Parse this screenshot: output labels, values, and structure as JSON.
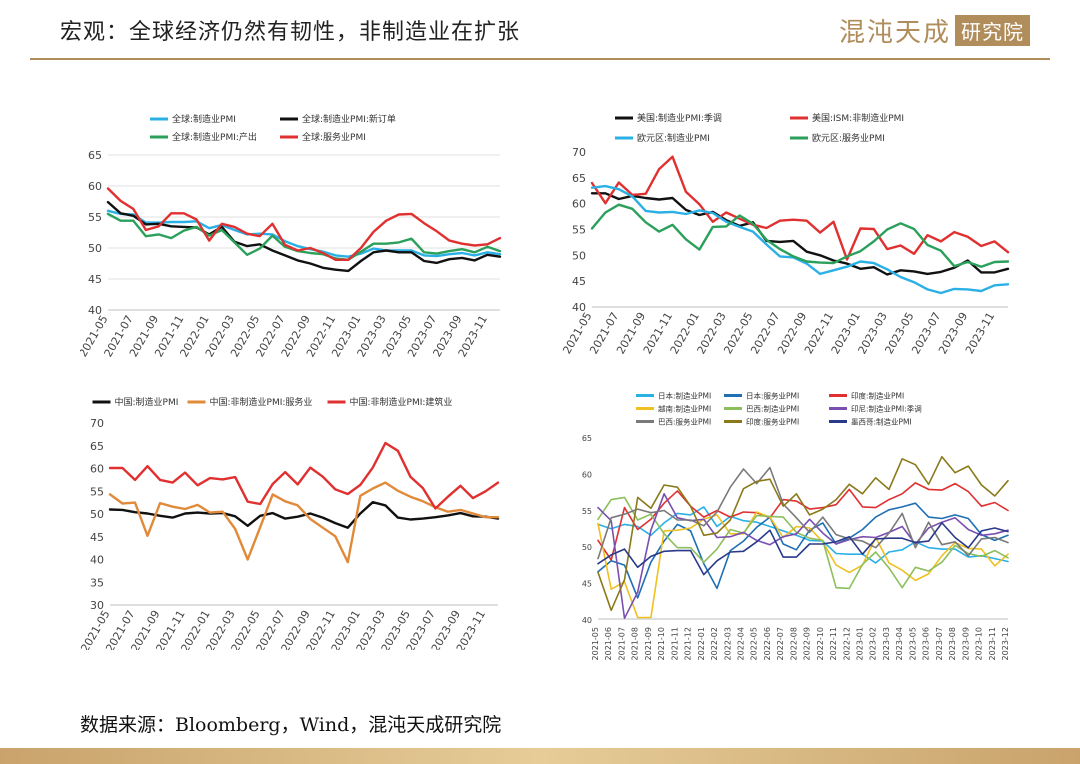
{
  "header": {
    "title": "宏观：全球经济仍然有韧性，非制造业在扩张",
    "brand_text": "混沌天成",
    "brand_box": "研究院"
  },
  "source": "数据来源：Bloomberg，Wind，混沌天成研究院",
  "colors": {
    "gold": "#b08d5a"
  },
  "chart_data": [
    {
      "type": "line",
      "ylim": [
        40,
        65
      ],
      "yticks": [
        40,
        45,
        50,
        55,
        60,
        65
      ],
      "x": [
        "2021-05",
        "2021-06",
        "2021-07",
        "2021-08",
        "2021-09",
        "2021-10",
        "2021-11",
        "2021-12",
        "2022-01",
        "2022-02",
        "2022-03",
        "2022-04",
        "2022-05",
        "2022-06",
        "2022-07",
        "2022-08",
        "2022-09",
        "2022-10",
        "2022-11",
        "2022-12",
        "2023-01",
        "2023-02",
        "2023-03",
        "2023-04",
        "2023-05",
        "2023-06",
        "2023-07",
        "2023-08",
        "2023-09",
        "2023-10",
        "2023-11",
        "2023-12"
      ],
      "xticks": [
        "2021-05",
        "2021-07",
        "2021-09",
        "2021-11",
        "2022-01",
        "2022-03",
        "2022-05",
        "2022-07",
        "2022-09",
        "2022-11",
        "2023-01",
        "2023-03",
        "2023-05",
        "2023-07",
        "2023-09",
        "2023-11"
      ],
      "legend": "top",
      "legend_cols": 2,
      "grid": true,
      "series": [
        {
          "name": "全球:制造业PMI",
          "color": "#2bb0e6",
          "values": [
            56.0,
            55.5,
            55.4,
            54.1,
            54.1,
            54.2,
            54.2,
            54.3,
            53.2,
            53.7,
            52.9,
            52.2,
            52.3,
            52.2,
            51.1,
            50.3,
            49.8,
            49.4,
            48.8,
            48.6,
            49.1,
            49.9,
            49.6,
            49.6,
            49.6,
            48.8,
            48.7,
            49.0,
            49.2,
            48.8,
            49.3,
            49.0
          ]
        },
        {
          "name": "全球:制造业PMI:新订单",
          "color": "#111111",
          "values": [
            57.4,
            55.6,
            55.2,
            53.8,
            53.9,
            53.5,
            53.4,
            53.3,
            52.2,
            53.4,
            51.0,
            50.3,
            50.6,
            49.6,
            48.8,
            48.0,
            47.5,
            46.8,
            46.5,
            46.3,
            47.9,
            49.3,
            49.6,
            49.3,
            49.3,
            47.9,
            47.6,
            48.2,
            48.4,
            48.0,
            48.9,
            48.6
          ]
        },
        {
          "name": "全球:制造业PMI:产出",
          "color": "#2aa05a",
          "values": [
            55.5,
            54.4,
            54.4,
            51.9,
            52.2,
            51.6,
            52.8,
            53.4,
            52.0,
            52.9,
            50.9,
            48.9,
            49.9,
            52.0,
            50.2,
            49.5,
            49.2,
            49.0,
            48.3,
            48.1,
            49.4,
            50.7,
            50.7,
            50.9,
            51.5,
            49.3,
            49.1,
            49.5,
            49.8,
            49.3,
            50.2,
            49.5
          ]
        },
        {
          "name": "全球:服务业PMI",
          "color": "#e03030",
          "values": [
            59.6,
            57.6,
            56.3,
            52.9,
            53.5,
            55.6,
            55.6,
            54.6,
            51.2,
            53.9,
            53.4,
            52.3,
            51.9,
            53.9,
            50.5,
            49.6,
            50.0,
            49.2,
            48.1,
            48.1,
            50.0,
            52.6,
            54.4,
            55.4,
            55.5,
            54.0,
            52.7,
            51.2,
            50.7,
            50.4,
            50.6,
            51.6
          ]
        }
      ]
    },
    {
      "type": "line",
      "ylim": [
        40,
        70
      ],
      "yticks": [
        40,
        45,
        50,
        55,
        60,
        65,
        70
      ],
      "x": [
        "2021-05",
        "2021-06",
        "2021-07",
        "2021-08",
        "2021-09",
        "2021-10",
        "2021-11",
        "2021-12",
        "2022-01",
        "2022-02",
        "2022-03",
        "2022-04",
        "2022-05",
        "2022-06",
        "2022-07",
        "2022-08",
        "2022-09",
        "2022-10",
        "2022-11",
        "2022-12",
        "2023-01",
        "2023-02",
        "2023-03",
        "2023-04",
        "2023-05",
        "2023-06",
        "2023-07",
        "2023-08",
        "2023-09",
        "2023-10",
        "2023-11",
        "2023-12"
      ],
      "xticks": [
        "2021-05",
        "2021-07",
        "2021-09",
        "2021-11",
        "2022-01",
        "2022-03",
        "2022-05",
        "2022-07",
        "2022-09",
        "2022-11",
        "2023-01",
        "2023-03",
        "2023-05",
        "2023-07",
        "2023-09",
        "2023-11"
      ],
      "legend": "top",
      "legend_cols": 2,
      "grid": false,
      "series": [
        {
          "name": "美国:制造业PMI:季调",
          "color": "#111111",
          "values": [
            62.0,
            62.0,
            60.9,
            61.5,
            61.1,
            60.8,
            61.1,
            58.8,
            57.8,
            58.4,
            56.8,
            55.7,
            56.4,
            52.8,
            52.6,
            52.8,
            50.7,
            50.0,
            49.0,
            48.4,
            47.4,
            47.7,
            46.3,
            47.1,
            46.9,
            46.4,
            46.8,
            47.6,
            49.0,
            46.7,
            46.7,
            47.4
          ]
        },
        {
          "name": "美国:ISM:非制造业PMI",
          "color": "#e03030",
          "values": [
            64.0,
            60.1,
            64.1,
            61.7,
            61.9,
            66.7,
            69.1,
            62.3,
            59.9,
            56.5,
            58.3,
            57.1,
            55.9,
            55.3,
            56.7,
            56.9,
            56.7,
            54.4,
            56.5,
            49.2,
            55.2,
            55.1,
            51.2,
            51.9,
            50.3,
            53.9,
            52.7,
            54.5,
            53.6,
            51.8,
            52.7,
            50.6
          ]
        },
        {
          "name": "欧元区:制造业PMI",
          "color": "#2bb0e6",
          "values": [
            63.1,
            63.4,
            62.8,
            61.4,
            58.6,
            58.3,
            58.4,
            58.0,
            58.7,
            58.2,
            56.5,
            55.5,
            54.6,
            52.1,
            49.8,
            49.6,
            48.4,
            46.4,
            47.1,
            47.8,
            48.8,
            48.5,
            47.3,
            45.8,
            44.8,
            43.4,
            42.7,
            43.5,
            43.4,
            43.1,
            44.2,
            44.4
          ]
        },
        {
          "name": "欧元区:服务业PMI",
          "color": "#2aa05a",
          "values": [
            55.2,
            58.3,
            59.8,
            59.0,
            56.4,
            54.6,
            55.9,
            53.1,
            51.1,
            55.5,
            55.6,
            57.7,
            56.1,
            53.0,
            51.2,
            49.8,
            48.8,
            48.6,
            48.5,
            49.8,
            50.8,
            52.7,
            55.0,
            56.2,
            55.1,
            52.0,
            50.9,
            47.9,
            48.7,
            47.8,
            48.7,
            48.8
          ]
        }
      ]
    },
    {
      "type": "line",
      "ylim": [
        30,
        70
      ],
      "yticks": [
        30,
        35,
        40,
        45,
        50,
        55,
        60,
        65,
        70
      ],
      "x": [
        "2021-05",
        "2021-06",
        "2021-07",
        "2021-08",
        "2021-09",
        "2021-10",
        "2021-11",
        "2021-12",
        "2022-01",
        "2022-02",
        "2022-03",
        "2022-04",
        "2022-05",
        "2022-06",
        "2022-07",
        "2022-08",
        "2022-09",
        "2022-10",
        "2022-11",
        "2022-12",
        "2023-01",
        "2023-02",
        "2023-03",
        "2023-04",
        "2023-05",
        "2023-06",
        "2023-07",
        "2023-08",
        "2023-09",
        "2023-10",
        "2023-11",
        "2023-12"
      ],
      "xticks": [
        "2021-05",
        "2021-07",
        "2021-09",
        "2021-11",
        "2022-01",
        "2022-03",
        "2022-05",
        "2022-07",
        "2022-09",
        "2022-11",
        "2023-01",
        "2023-03",
        "2023-05",
        "2023-07",
        "2023-09",
        "2023-11"
      ],
      "legend": "top",
      "legend_cols": 3,
      "grid": false,
      "series": [
        {
          "name": "中国:制造业PMI",
          "color": "#111111",
          "values": [
            51.0,
            50.9,
            50.4,
            50.1,
            49.6,
            49.2,
            50.1,
            50.3,
            50.1,
            50.2,
            49.5,
            47.4,
            49.6,
            50.2,
            49.0,
            49.4,
            50.1,
            49.2,
            48.0,
            47.0,
            50.1,
            52.6,
            51.9,
            49.2,
            48.8,
            49.0,
            49.3,
            49.7,
            50.2,
            49.5,
            49.4,
            49.0
          ]
        },
        {
          "name": "中国:非制造业PMI:服务业",
          "color": "#e08a3a",
          "values": [
            54.3,
            52.3,
            52.5,
            45.2,
            52.4,
            51.6,
            51.1,
            52.0,
            50.3,
            50.5,
            46.7,
            40.0,
            47.1,
            54.3,
            52.8,
            51.9,
            48.9,
            47.0,
            45.1,
            39.4,
            54.0,
            55.6,
            56.9,
            55.1,
            53.8,
            52.8,
            51.5,
            50.5,
            50.9,
            50.1,
            49.3,
            49.3
          ]
        },
        {
          "name": "中国:非制造业PMI:建筑业",
          "color": "#e03030",
          "values": [
            60.1,
            60.1,
            57.5,
            60.5,
            57.5,
            56.9,
            59.1,
            56.3,
            57.9,
            57.6,
            58.1,
            52.7,
            52.2,
            56.6,
            59.2,
            56.5,
            60.2,
            58.2,
            55.4,
            54.4,
            56.4,
            60.2,
            65.6,
            63.9,
            58.2,
            55.7,
            51.2,
            53.8,
            56.2,
            53.5,
            55.0,
            56.9
          ]
        }
      ]
    },
    {
      "type": "line",
      "ylim": [
        40,
        65
      ],
      "yticks": [
        40,
        45,
        50,
        55,
        60,
        65
      ],
      "x": [
        "2021-05",
        "2021-06",
        "2021-07",
        "2021-08",
        "2021-09",
        "2021-10",
        "2021-11",
        "2021-12",
        "2022-01",
        "2022-02",
        "2022-03",
        "2022-04",
        "2022-05",
        "2022-06",
        "2022-07",
        "2022-08",
        "2022-09",
        "2022-10",
        "2022-11",
        "2022-12",
        "2023-01",
        "2023-02",
        "2023-03",
        "2023-04",
        "2023-05",
        "2023-06",
        "2023-07",
        "2023-08",
        "2023-09",
        "2023-10",
        "2023-11",
        "2023-12"
      ],
      "xticks": [
        "2021-05",
        "2021-06",
        "2021-07",
        "2021-08",
        "2021-09",
        "2021-10",
        "2021-11",
        "2021-12",
        "2022-01",
        "2022-02",
        "2022-03",
        "2022-04",
        "2022-05",
        "2022-06",
        "2022-07",
        "2022-08",
        "2022-09",
        "2022-10",
        "2022-11",
        "2022-12",
        "2023-01",
        "2023-02",
        "2023-03",
        "2023-04",
        "2023-05",
        "2023-06",
        "2023-07",
        "2023-08",
        "2023-09",
        "2023-10",
        "2023-11",
        "2023-12"
      ],
      "legend": "top",
      "legend_cols": 3,
      "grid": false,
      "series": [
        {
          "name": "日本:制造业PMI",
          "color": "#2bb0e6",
          "values": [
            53.0,
            52.4,
            53.0,
            52.7,
            51.5,
            53.2,
            54.5,
            54.3,
            55.4,
            52.7,
            54.1,
            53.5,
            53.3,
            52.7,
            52.1,
            51.5,
            50.8,
            50.7,
            49.0,
            48.9,
            48.9,
            47.7,
            49.2,
            49.5,
            50.6,
            49.8,
            49.6,
            49.6,
            48.5,
            48.7,
            48.3,
            47.9
          ]
        },
        {
          "name": "日本:服务业PMI",
          "color": "#1f6fb5",
          "values": [
            46.5,
            48.0,
            47.4,
            42.9,
            47.8,
            50.7,
            53.0,
            52.1,
            47.6,
            44.2,
            49.4,
            50.7,
            52.6,
            54.0,
            50.3,
            49.5,
            52.2,
            53.2,
            50.3,
            51.1,
            52.3,
            54.0,
            55.0,
            55.4,
            55.9,
            54.0,
            53.8,
            54.3,
            53.8,
            51.6,
            50.8,
            51.5
          ]
        },
        {
          "name": "印度:制造业PMI",
          "color": "#e03030",
          "values": [
            50.8,
            48.1,
            55.3,
            52.3,
            53.7,
            55.9,
            57.6,
            55.5,
            54.0,
            54.9,
            54.0,
            54.7,
            54.6,
            53.9,
            56.4,
            56.2,
            55.1,
            55.3,
            55.7,
            57.8,
            55.4,
            55.3,
            56.4,
            57.2,
            58.7,
            57.8,
            57.7,
            58.6,
            57.5,
            55.5,
            56.0,
            54.9
          ]
        },
        {
          "name": "越南:制造业PMI",
          "color": "#f0c020",
          "values": [
            53.1,
            44.1,
            45.1,
            40.2,
            40.2,
            52.1,
            52.2,
            52.5,
            53.7,
            54.3,
            51.7,
            51.7,
            54.7,
            54.0,
            51.2,
            52.7,
            52.5,
            50.6,
            47.4,
            46.4,
            47.4,
            51.2,
            47.7,
            46.7,
            45.3,
            46.2,
            48.7,
            50.5,
            49.7,
            49.6,
            47.3,
            48.9
          ]
        },
        {
          "name": "巴西:制造业PMI",
          "color": "#8cbf5c",
          "values": [
            53.7,
            56.4,
            56.7,
            53.6,
            54.4,
            51.7,
            49.8,
            49.8,
            47.8,
            49.6,
            52.3,
            51.8,
            54.2,
            54.1,
            54.0,
            51.9,
            51.1,
            50.8,
            44.3,
            44.2,
            47.5,
            49.2,
            47.0,
            44.3,
            47.1,
            46.6,
            47.8,
            50.1,
            49.0,
            48.6,
            49.4,
            48.4
          ]
        },
        {
          "name": "印尼:制造业PMI:季调",
          "color": "#7a4fb0",
          "values": [
            55.3,
            53.5,
            40.1,
            43.7,
            52.2,
            57.2,
            53.9,
            53.5,
            53.7,
            51.2,
            51.3,
            51.9,
            50.8,
            50.2,
            51.3,
            51.7,
            53.7,
            51.8,
            50.3,
            50.9,
            51.3,
            51.2,
            51.9,
            52.7,
            50.3,
            52.5,
            53.3,
            53.9,
            52.3,
            51.5,
            51.7,
            52.2
          ]
        },
        {
          "name": "巴西:服务业PMI",
          "color": "#7a7a7a",
          "values": [
            48.3,
            53.9,
            54.4,
            55.1,
            54.6,
            54.9,
            53.6,
            53.6,
            52.8,
            54.7,
            58.1,
            60.6,
            58.6,
            60.8,
            55.8,
            53.9,
            51.9,
            54.0,
            51.6,
            51.0,
            50.7,
            49.8,
            51.8,
            54.5,
            49.8,
            53.3,
            50.2,
            50.6,
            48.7,
            51.0,
            51.2,
            50.5
          ]
        },
        {
          "name": "印度:服务业PMI",
          "color": "#8a7a1a",
          "values": [
            46.4,
            41.2,
            45.4,
            56.7,
            55.2,
            58.4,
            58.1,
            55.5,
            51.5,
            51.8,
            53.6,
            57.9,
            58.9,
            59.2,
            55.5,
            57.2,
            54.3,
            55.1,
            56.4,
            58.5,
            57.2,
            59.4,
            57.8,
            62.0,
            61.2,
            58.5,
            62.3,
            60.1,
            61.0,
            58.4,
            56.9,
            59.0
          ]
        },
        {
          "name": "墨西哥:制造业PMI",
          "color": "#2a3a8a",
          "values": [
            47.6,
            48.8,
            49.6,
            47.1,
            48.6,
            49.3,
            49.4,
            49.4,
            46.1,
            48.0,
            49.2,
            49.3,
            50.6,
            52.2,
            48.5,
            48.5,
            50.3,
            50.3,
            50.6,
            51.3,
            48.9,
            51.0,
            51.1,
            51.1,
            50.5,
            50.7,
            53.2,
            51.2,
            49.8,
            52.1,
            52.5,
            52.0
          ]
        }
      ]
    }
  ]
}
